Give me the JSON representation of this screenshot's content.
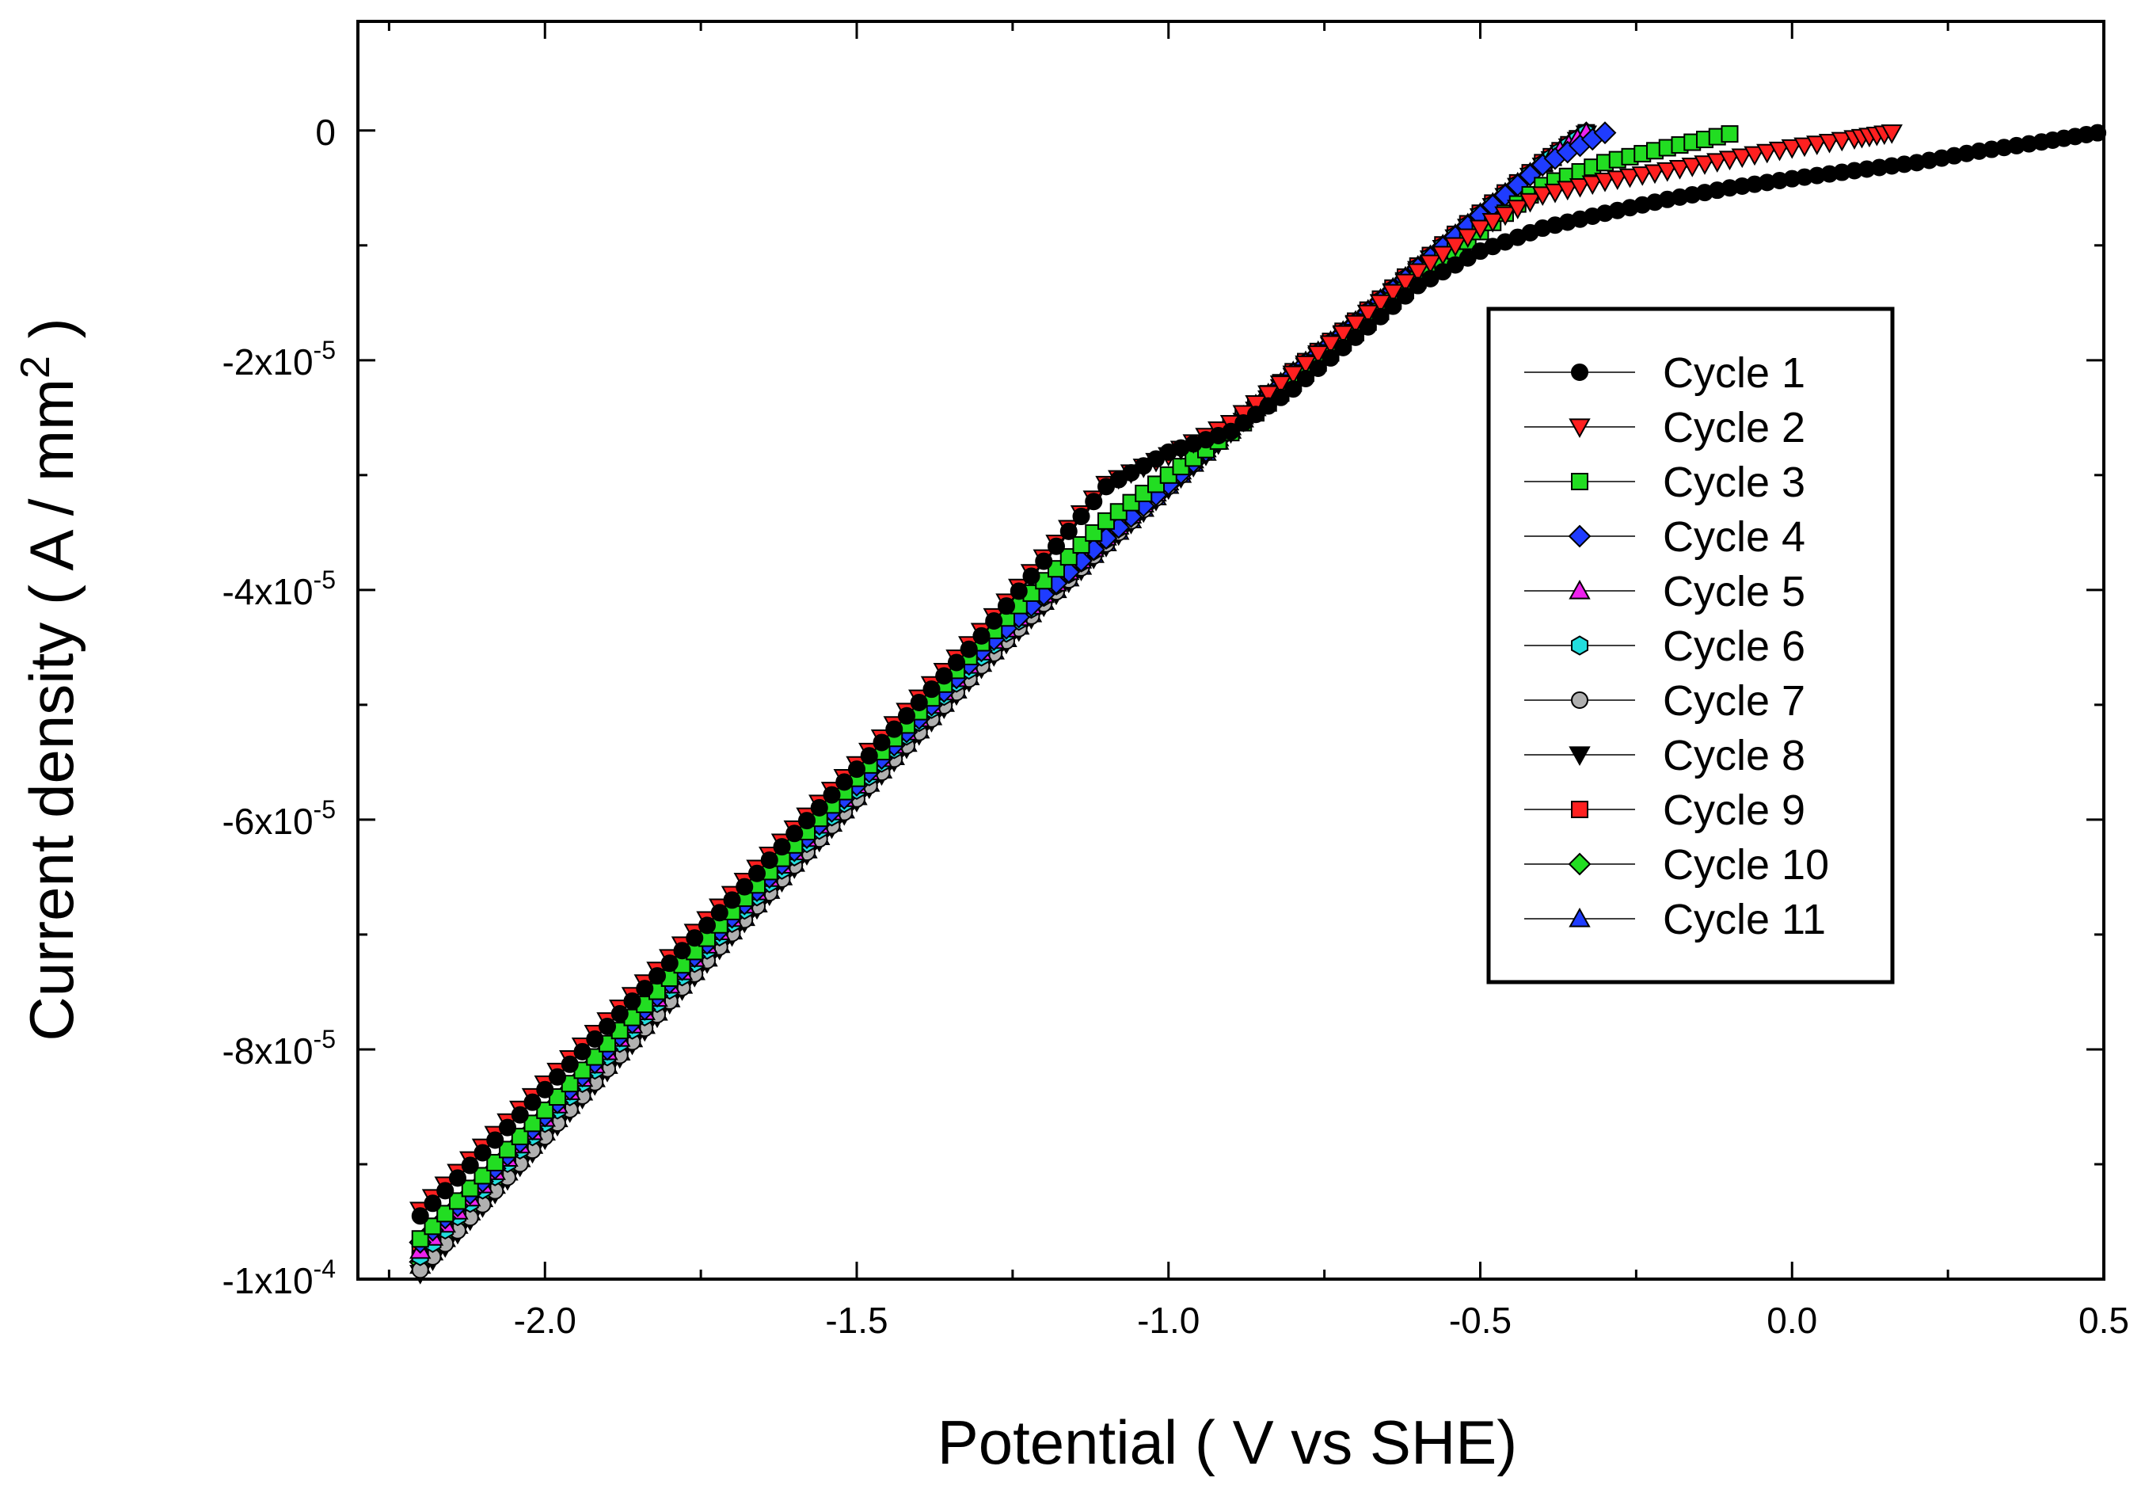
{
  "chart_data": {
    "type": "scatter",
    "title": "",
    "xlabel": "Potential ( V vs SHE)",
    "ylabel_parts": [
      "Current density ( A / mm",
      "2",
      " )"
    ],
    "xlim": [
      -2.3,
      0.5
    ],
    "ylim": [
      -0.0001,
      9.5e-06
    ],
    "x_ticks": [
      -2.0,
      -1.5,
      -1.0,
      -0.5,
      0.0,
      0.5
    ],
    "x_tick_labels": [
      "-2.0",
      "-1.5",
      "-1.0",
      "-0.5",
      "0.0",
      "0.5"
    ],
    "y_ticks": [
      0,
      -2e-05,
      -4e-05,
      -6e-05,
      -8e-05,
      -0.0001
    ],
    "y_tick_labels": [
      {
        "value": 0,
        "base": "0",
        "exp": ""
      },
      {
        "value": -2e-05,
        "base": "-2x10",
        "exp": "-5"
      },
      {
        "value": -4e-05,
        "base": "-4x10",
        "exp": "-5"
      },
      {
        "value": -6e-05,
        "base": "-6x10",
        "exp": "-5"
      },
      {
        "value": -8e-05,
        "base": "-8x10",
        "exp": "-5"
      },
      {
        "value": -0.0001,
        "base": "-1x10",
        "exp": "-4"
      }
    ],
    "grid": false,
    "legend_position": "right",
    "series": [
      {
        "name": "Cycle 1",
        "marker": "circle",
        "color": "#000000",
        "points": [
          [
            -2.2,
            -9.45e-05
          ],
          [
            -2.1,
            -8.9e-05
          ],
          [
            -2.0,
            -8.35e-05
          ],
          [
            -1.9,
            -7.8e-05
          ],
          [
            -1.8,
            -7.25e-05
          ],
          [
            -1.7,
            -6.7e-05
          ],
          [
            -1.6,
            -6.12e-05
          ],
          [
            -1.5,
            -5.56e-05
          ],
          [
            -1.4,
            -4.98e-05
          ],
          [
            -1.3,
            -4.4e-05
          ],
          [
            -1.2,
            -3.75e-05
          ],
          [
            -1.1,
            -3.1e-05
          ],
          [
            -1.0,
            -2.8e-05
          ],
          [
            -0.9,
            -2.62e-05
          ],
          [
            -0.8,
            -2.25e-05
          ],
          [
            -0.7,
            -1.8e-05
          ],
          [
            -0.6,
            -1.35e-05
          ],
          [
            -0.5,
            -1.05e-05
          ],
          [
            -0.4,
            -8.5e-06
          ],
          [
            -0.3,
            -7.2e-06
          ],
          [
            -0.2,
            -6e-06
          ],
          [
            -0.1,
            -5e-06
          ],
          [
            0.0,
            -4.2e-06
          ],
          [
            0.1,
            -3.5e-06
          ],
          [
            0.2,
            -2.8e-06
          ],
          [
            0.3,
            -1.8e-06
          ],
          [
            0.4,
            -1e-06
          ],
          [
            0.49,
            -2e-07
          ]
        ]
      },
      {
        "name": "Cycle 2",
        "marker": "triangle-down",
        "color": "#ff2020",
        "points": [
          [
            -2.2,
            -9.4e-05
          ],
          [
            -2.1,
            -8.85e-05
          ],
          [
            -2.0,
            -8.3e-05
          ],
          [
            -1.9,
            -7.75e-05
          ],
          [
            -1.8,
            -7.2e-05
          ],
          [
            -1.7,
            -6.65e-05
          ],
          [
            -1.6,
            -6.08e-05
          ],
          [
            -1.5,
            -5.52e-05
          ],
          [
            -1.4,
            -4.94e-05
          ],
          [
            -1.3,
            -4.36e-05
          ],
          [
            -1.2,
            -3.72e-05
          ],
          [
            -1.1,
            -3.08e-05
          ],
          [
            -1.0,
            -2.83e-05
          ],
          [
            -0.9,
            -2.55e-05
          ],
          [
            -0.8,
            -2.12e-05
          ],
          [
            -0.7,
            -1.68e-05
          ],
          [
            -0.6,
            -1.23e-05
          ],
          [
            -0.5,
            -8.5e-06
          ],
          [
            -0.4,
            -5.6e-06
          ],
          [
            -0.3,
            -4.4e-06
          ],
          [
            -0.2,
            -3.5e-06
          ],
          [
            -0.1,
            -2.5e-06
          ],
          [
            0.0,
            -1.5e-06
          ],
          [
            0.1,
            -7e-07
          ],
          [
            0.16,
            -2e-07
          ]
        ]
      },
      {
        "name": "Cycle 3",
        "marker": "square",
        "color": "#22dd22",
        "points": [
          [
            -2.2,
            -9.65e-05
          ],
          [
            -2.1,
            -9.1e-05
          ],
          [
            -2.0,
            -8.53e-05
          ],
          [
            -1.9,
            -7.95e-05
          ],
          [
            -1.8,
            -7.38e-05
          ],
          [
            -1.7,
            -6.8e-05
          ],
          [
            -1.6,
            -6.22e-05
          ],
          [
            -1.5,
            -5.64e-05
          ],
          [
            -1.4,
            -5.06e-05
          ],
          [
            -1.3,
            -4.46e-05
          ],
          [
            -1.2,
            -3.92e-05
          ],
          [
            -1.1,
            -3.4e-05
          ],
          [
            -1.0,
            -3e-05
          ],
          [
            -0.9,
            -2.63e-05
          ],
          [
            -0.8,
            -2.2e-05
          ],
          [
            -0.7,
            -1.76e-05
          ],
          [
            -0.6,
            -1.3e-05
          ],
          [
            -0.5,
            -8.8e-06
          ],
          [
            -0.4,
            -4.8e-06
          ],
          [
            -0.3,
            -2.8e-06
          ],
          [
            -0.2,
            -1.5e-06
          ],
          [
            -0.1,
            -3e-07
          ]
        ]
      },
      {
        "name": "Cycle 4",
        "marker": "diamond",
        "color": "#1f3cff",
        "points": [
          [
            -2.2,
            -9.68e-05
          ],
          [
            -2.1,
            -9.15e-05
          ],
          [
            -2.0,
            -8.58e-05
          ],
          [
            -1.9,
            -8e-05
          ],
          [
            -1.8,
            -7.42e-05
          ],
          [
            -1.7,
            -6.85e-05
          ],
          [
            -1.6,
            -6.27e-05
          ],
          [
            -1.5,
            -5.7e-05
          ],
          [
            -1.4,
            -5.12e-05
          ],
          [
            -1.3,
            -4.53e-05
          ],
          [
            -1.2,
            -4.04e-05
          ],
          [
            -1.1,
            -3.55e-05
          ],
          [
            -1.0,
            -3.08e-05
          ],
          [
            -0.9,
            -2.6e-05
          ],
          [
            -0.8,
            -2.12e-05
          ],
          [
            -0.7,
            -1.68e-05
          ],
          [
            -0.6,
            -1.2e-05
          ],
          [
            -0.5,
            -7.4e-06
          ],
          [
            -0.4,
            -3e-06
          ],
          [
            -0.3,
            -2e-07
          ]
        ]
      },
      {
        "name": "Cycle 5",
        "marker": "triangle-up",
        "color": "#ee22ee",
        "points": [
          [
            -2.2,
            -9.75e-05
          ],
          [
            -2.1,
            -9.18e-05
          ],
          [
            -2.0,
            -8.6e-05
          ],
          [
            -1.9,
            -8.02e-05
          ],
          [
            -1.8,
            -7.44e-05
          ],
          [
            -1.7,
            -6.86e-05
          ],
          [
            -1.6,
            -6.28e-05
          ],
          [
            -1.5,
            -5.7e-05
          ],
          [
            -1.4,
            -5.12e-05
          ],
          [
            -1.3,
            -4.54e-05
          ],
          [
            -1.2,
            -4.04e-05
          ],
          [
            -1.1,
            -3.54e-05
          ],
          [
            -1.0,
            -3.06e-05
          ],
          [
            -0.9,
            -2.58e-05
          ],
          [
            -0.8,
            -2.1e-05
          ],
          [
            -0.7,
            -1.66e-05
          ],
          [
            -0.6,
            -1.18e-05
          ],
          [
            -0.5,
            -7.2e-06
          ],
          [
            -0.4,
            -2.8e-06
          ],
          [
            -0.33,
            -2e-07
          ]
        ]
      },
      {
        "name": "Cycle 6",
        "marker": "hexagon",
        "color": "#22dddd",
        "points": [
          [
            -2.2,
            -9.8e-05
          ],
          [
            -2.1,
            -9.22e-05
          ],
          [
            -2.0,
            -8.64e-05
          ],
          [
            -1.9,
            -8.06e-05
          ],
          [
            -1.8,
            -7.48e-05
          ],
          [
            -1.7,
            -6.9e-05
          ],
          [
            -1.6,
            -6.32e-05
          ],
          [
            -1.5,
            -5.74e-05
          ],
          [
            -1.4,
            -5.15e-05
          ],
          [
            -1.3,
            -4.58e-05
          ],
          [
            -1.2,
            -4.06e-05
          ],
          [
            -1.1,
            -3.56e-05
          ],
          [
            -1.0,
            -3.07e-05
          ],
          [
            -0.9,
            -2.59e-05
          ],
          [
            -0.8,
            -2.11e-05
          ],
          [
            -0.7,
            -1.67e-05
          ],
          [
            -0.6,
            -1.19e-05
          ],
          [
            -0.5,
            -7.3e-06
          ],
          [
            -0.4,
            -2.9e-06
          ],
          [
            -0.33,
            -2e-07
          ]
        ]
      },
      {
        "name": "Cycle 7",
        "marker": "circle",
        "color": "#b0b0b0",
        "points": [
          [
            -2.2,
            -9.92e-05
          ],
          [
            -2.1,
            -9.35e-05
          ],
          [
            -2.0,
            -8.76e-05
          ],
          [
            -1.9,
            -8.17e-05
          ],
          [
            -1.8,
            -7.58e-05
          ],
          [
            -1.7,
            -6.99e-05
          ],
          [
            -1.6,
            -6.4e-05
          ],
          [
            -1.5,
            -5.82e-05
          ],
          [
            -1.4,
            -5.24e-05
          ],
          [
            -1.3,
            -4.66e-05
          ],
          [
            -1.2,
            -4.12e-05
          ],
          [
            -1.1,
            -3.6e-05
          ],
          [
            -1.0,
            -3.1e-05
          ],
          [
            -0.9,
            -2.61e-05
          ],
          [
            -0.8,
            -2.13e-05
          ],
          [
            -0.7,
            -1.68e-05
          ],
          [
            -0.6,
            -1.2e-05
          ],
          [
            -0.5,
            -7.4e-06
          ],
          [
            -0.4,
            -3e-06
          ],
          [
            -0.33,
            -3e-07
          ]
        ]
      },
      {
        "name": "Cycle 8",
        "marker": "triangle-down",
        "color": "#000000",
        "points": [
          [
            -2.2,
            -9.95e-05
          ],
          [
            -2.1,
            -9.37e-05
          ],
          [
            -2.0,
            -8.78e-05
          ],
          [
            -1.9,
            -8.19e-05
          ],
          [
            -1.8,
            -7.6e-05
          ],
          [
            -1.7,
            -7.01e-05
          ],
          [
            -1.6,
            -6.42e-05
          ],
          [
            -1.5,
            -5.84e-05
          ],
          [
            -1.4,
            -5.26e-05
          ],
          [
            -1.3,
            -4.68e-05
          ],
          [
            -1.2,
            -4.14e-05
          ],
          [
            -1.1,
            -3.62e-05
          ],
          [
            -1.0,
            -3.12e-05
          ],
          [
            -0.9,
            -2.63e-05
          ],
          [
            -0.8,
            -2.14e-05
          ],
          [
            -0.7,
            -1.69e-05
          ],
          [
            -0.6,
            -1.21e-05
          ],
          [
            -0.5,
            -7.5e-06
          ],
          [
            -0.4,
            -3.1e-06
          ],
          [
            -0.33,
            -3e-07
          ]
        ]
      },
      {
        "name": "Cycle 9",
        "marker": "square",
        "color": "#ff2020",
        "points": [
          [
            -2.2,
            -9.78e-05
          ],
          [
            -2.1,
            -9.2e-05
          ],
          [
            -2.0,
            -8.62e-05
          ],
          [
            -1.9,
            -8.04e-05
          ],
          [
            -1.8,
            -7.46e-05
          ],
          [
            -1.7,
            -6.88e-05
          ],
          [
            -1.6,
            -6.3e-05
          ],
          [
            -1.5,
            -5.72e-05
          ],
          [
            -1.4,
            -5.14e-05
          ],
          [
            -1.3,
            -4.56e-05
          ],
          [
            -1.2,
            -4.05e-05
          ],
          [
            -1.1,
            -3.55e-05
          ],
          [
            -1.0,
            -3.06e-05
          ],
          [
            -0.9,
            -2.58e-05
          ],
          [
            -0.8,
            -2.1e-05
          ],
          [
            -0.7,
            -1.66e-05
          ],
          [
            -0.6,
            -1.18e-05
          ],
          [
            -0.5,
            -7.2e-06
          ],
          [
            -0.4,
            -2.8e-06
          ],
          [
            -0.33,
            -2e-07
          ]
        ]
      },
      {
        "name": "Cycle 10",
        "marker": "diamond",
        "color": "#22dd22",
        "points": [
          [
            -2.2,
            -9.85e-05
          ],
          [
            -2.1,
            -9.27e-05
          ],
          [
            -2.0,
            -8.69e-05
          ],
          [
            -1.9,
            -8.11e-05
          ],
          [
            -1.8,
            -7.53e-05
          ],
          [
            -1.7,
            -6.95e-05
          ],
          [
            -1.6,
            -6.36e-05
          ],
          [
            -1.5,
            -5.78e-05
          ],
          [
            -1.4,
            -5.2e-05
          ],
          [
            -1.3,
            -4.62e-05
          ],
          [
            -1.2,
            -4.09e-05
          ],
          [
            -1.1,
            -3.58e-05
          ],
          [
            -1.0,
            -3.09e-05
          ],
          [
            -0.9,
            -2.6e-05
          ],
          [
            -0.8,
            -2.12e-05
          ],
          [
            -0.7,
            -1.67e-05
          ],
          [
            -0.6,
            -1.19e-05
          ],
          [
            -0.5,
            -7.3e-06
          ],
          [
            -0.4,
            -2.9e-06
          ],
          [
            -0.33,
            -2e-07
          ]
        ]
      },
      {
        "name": "Cycle 11",
        "marker": "triangle-up",
        "color": "#1f3cff",
        "points": [
          [
            -2.2,
            -9.88e-05
          ],
          [
            -2.1,
            -9.3e-05
          ],
          [
            -2.0,
            -8.72e-05
          ],
          [
            -1.9,
            -8.14e-05
          ],
          [
            -1.8,
            -7.56e-05
          ],
          [
            -1.7,
            -6.97e-05
          ],
          [
            -1.6,
            -6.38e-05
          ],
          [
            -1.5,
            -5.8e-05
          ],
          [
            -1.4,
            -5.22e-05
          ],
          [
            -1.3,
            -4.64e-05
          ],
          [
            -1.2,
            -4.1e-05
          ],
          [
            -1.1,
            -3.59e-05
          ],
          [
            -1.0,
            -3.09e-05
          ],
          [
            -0.9,
            -2.61e-05
          ],
          [
            -0.8,
            -2.12e-05
          ],
          [
            -0.7,
            -1.67e-05
          ],
          [
            -0.6,
            -1.19e-05
          ],
          [
            -0.5,
            -7.3e-06
          ],
          [
            -0.4,
            -2.9e-06
          ],
          [
            -0.33,
            -2e-07
          ]
        ]
      }
    ]
  }
}
